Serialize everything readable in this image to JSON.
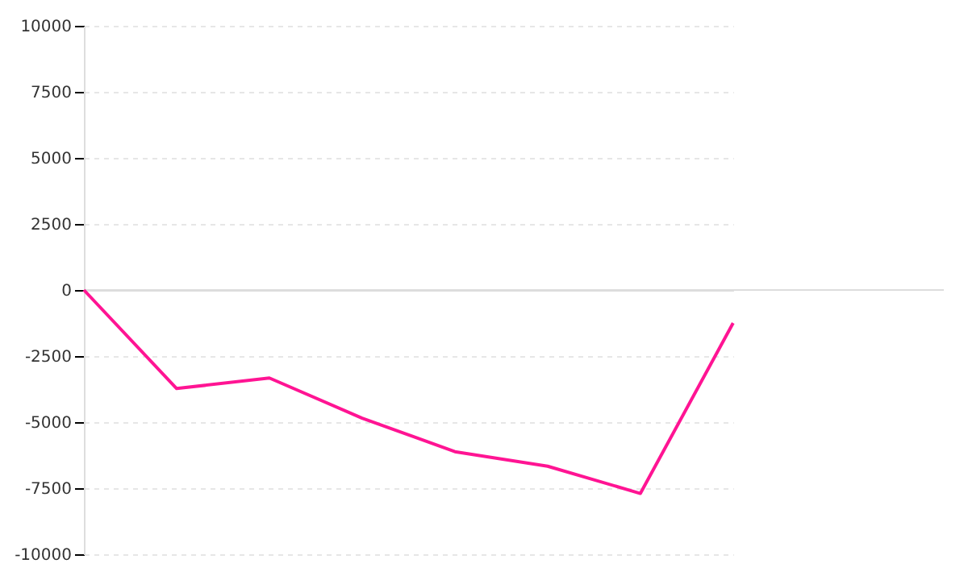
{
  "chart_data": {
    "type": "line",
    "categories": [
      null,
      null,
      null,
      null,
      null,
      null,
      null,
      null
    ],
    "series": [
      {
        "color": "#ff1493",
        "values": [
          0,
          -3730,
          -3330,
          -4850,
          -6120,
          -6670,
          -7700,
          -1250
        ]
      }
    ],
    "ylim": [
      -10000,
      10000
    ],
    "yticks": [
      -10000,
      -7500,
      -5000,
      -2500,
      0,
      2500,
      5000,
      7500,
      10000
    ],
    "grid": "y",
    "marker": "none",
    "line_style": "solid",
    "tick_labels": "y"
  }
}
